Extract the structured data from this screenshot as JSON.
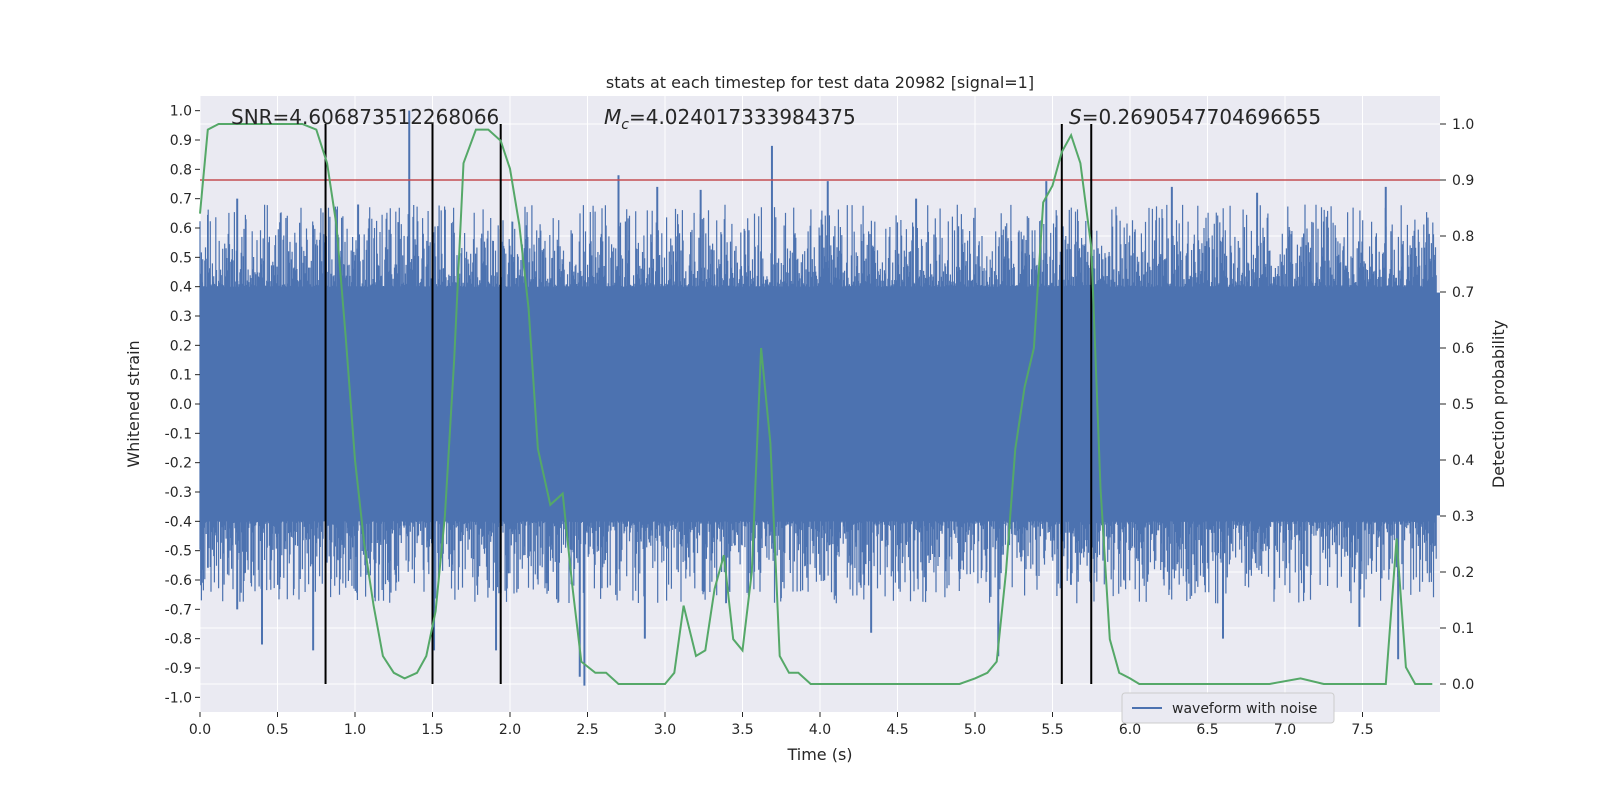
{
  "chart_data": {
    "type": "line",
    "title": "stats at each timestep for test data 20982 [signal=1]",
    "xlabel": "Time (s)",
    "ylabel_left": "Whitened strain",
    "ylabel_right": "Detection probability",
    "xlim": [
      0.0,
      8.0
    ],
    "ylim_left": [
      -1.05,
      1.05
    ],
    "ylim_right": [
      -0.05,
      1.05
    ],
    "x_ticks": [
      0.0,
      0.5,
      1.0,
      1.5,
      2.0,
      2.5,
      3.0,
      3.5,
      4.0,
      4.5,
      5.0,
      5.5,
      6.0,
      6.5,
      7.0,
      7.5
    ],
    "x_tick_labels": [
      "0.0",
      "0.5",
      "1.0",
      "1.5",
      "2.0",
      "2.5",
      "3.0",
      "3.5",
      "4.0",
      "4.5",
      "5.0",
      "5.5",
      "6.0",
      "6.5",
      "7.0",
      "7.5"
    ],
    "y_left_ticks": [
      1.0,
      0.9,
      0.8,
      0.7,
      0.6,
      0.5,
      0.4,
      0.3,
      0.2,
      0.1,
      0.0,
      -0.1,
      -0.2,
      -0.3,
      -0.4,
      -0.5,
      -0.6,
      -0.7,
      -0.8,
      -0.9,
      -1.0
    ],
    "y_left_tick_labels": [
      "1.0",
      "0.9",
      "0.8",
      "0.7",
      "0.6",
      "0.5",
      "0.4",
      "0.3",
      "0.2",
      "0.1",
      "0.0",
      "-0.1",
      "-0.2",
      "-0.3",
      "-0.4",
      "-0.5",
      "-0.6",
      "-0.7",
      "-0.8",
      "-0.9",
      "-1.0"
    ],
    "y_right_ticks": [
      1.0,
      0.9,
      0.8,
      0.7,
      0.6,
      0.5,
      0.4,
      0.3,
      0.2,
      0.1,
      0.0
    ],
    "y_right_tick_labels": [
      "1.0",
      "0.9",
      "0.8",
      "0.7",
      "0.6",
      "0.5",
      "0.4",
      "0.3",
      "0.2",
      "0.1",
      "0.0"
    ],
    "annotations": {
      "snr": "SNR=4.606873512268066",
      "mc": "=4.024017333984375",
      "mc_symbol": "M",
      "mc_sub": "c",
      "s": "=0.2690547704696655",
      "s_symbol": "S"
    },
    "legend": {
      "label": "waveform with noise",
      "position": "lower-right"
    },
    "threshold_line": {
      "y_right": 0.9,
      "color": "#c44e52"
    },
    "vertical_lines_x": [
      0.81,
      1.5,
      1.94,
      5.56,
      5.75
    ],
    "vertical_lines_range_right": [
      0.0,
      1.0
    ],
    "waveform": {
      "name": "waveform with noise",
      "color": "#4c72b0",
      "core_amplitude": 0.4,
      "spikes": [
        {
          "x": 1.35,
          "y": 1.0
        },
        {
          "x": 1.28,
          "y": 0.62
        },
        {
          "x": 3.69,
          "y": 0.88
        },
        {
          "x": 2.48,
          "y": -0.96
        },
        {
          "x": 2.45,
          "y": -0.93
        },
        {
          "x": 5.15,
          "y": -0.86
        },
        {
          "x": 0.4,
          "y": -0.82
        },
        {
          "x": 0.73,
          "y": -0.84
        },
        {
          "x": 1.91,
          "y": -0.84
        },
        {
          "x": 1.51,
          "y": -0.84
        },
        {
          "x": 7.73,
          "y": -0.87
        },
        {
          "x": 6.6,
          "y": -0.8
        },
        {
          "x": 7.48,
          "y": -0.76
        },
        {
          "x": 2.87,
          "y": -0.8
        },
        {
          "x": 0.24,
          "y": -0.7
        },
        {
          "x": 4.33,
          "y": -0.78
        },
        {
          "x": 7.65,
          "y": 0.74
        },
        {
          "x": 2.7,
          "y": 0.78
        },
        {
          "x": 2.95,
          "y": 0.74
        },
        {
          "x": 3.23,
          "y": 0.73
        },
        {
          "x": 4.05,
          "y": 0.76
        },
        {
          "x": 5.46,
          "y": 0.76
        },
        {
          "x": 6.27,
          "y": 0.74
        },
        {
          "x": 6.82,
          "y": 0.72
        },
        {
          "x": 0.24,
          "y": 0.7
        },
        {
          "x": 1.02,
          "y": 0.68
        },
        {
          "x": 4.62,
          "y": 0.7
        }
      ]
    },
    "detection_probability": {
      "name": "detection probability",
      "color": "#55a868",
      "x": [
        0.0,
        0.05,
        0.12,
        0.25,
        0.4,
        0.55,
        0.66,
        0.75,
        0.82,
        0.88,
        0.94,
        1.0,
        1.06,
        1.12,
        1.18,
        1.25,
        1.32,
        1.4,
        1.46,
        1.52,
        1.58,
        1.64,
        1.7,
        1.78,
        1.86,
        1.94,
        2.0,
        2.06,
        2.12,
        2.18,
        2.26,
        2.34,
        2.4,
        2.46,
        2.55,
        2.62,
        2.7,
        2.8,
        2.9,
        3.0,
        3.06,
        3.12,
        3.2,
        3.26,
        3.32,
        3.38,
        3.44,
        3.5,
        3.56,
        3.62,
        3.68,
        3.74,
        3.8,
        3.86,
        3.94,
        4.0,
        4.1,
        4.3,
        4.5,
        4.7,
        4.9,
        5.0,
        5.08,
        5.14,
        5.2,
        5.26,
        5.32,
        5.38,
        5.44,
        5.5,
        5.56,
        5.62,
        5.68,
        5.75,
        5.81,
        5.87,
        5.93,
        6.0,
        6.06,
        6.15,
        6.3,
        6.5,
        6.7,
        6.9,
        7.1,
        7.25,
        7.35,
        7.45,
        7.55,
        7.65,
        7.72,
        7.78,
        7.84,
        7.9,
        7.95
      ],
      "y": [
        0.84,
        0.99,
        1.0,
        1.0,
        1.0,
        1.0,
        1.0,
        0.99,
        0.93,
        0.82,
        0.62,
        0.4,
        0.25,
        0.14,
        0.05,
        0.02,
        0.01,
        0.02,
        0.05,
        0.13,
        0.3,
        0.58,
        0.93,
        0.99,
        0.99,
        0.97,
        0.92,
        0.82,
        0.67,
        0.42,
        0.32,
        0.34,
        0.18,
        0.04,
        0.02,
        0.02,
        0.0,
        0.0,
        0.0,
        0.0,
        0.02,
        0.14,
        0.05,
        0.06,
        0.17,
        0.23,
        0.08,
        0.06,
        0.2,
        0.6,
        0.43,
        0.05,
        0.02,
        0.02,
        0.0,
        0.0,
        0.0,
        0.0,
        0.0,
        0.0,
        0.0,
        0.01,
        0.02,
        0.04,
        0.2,
        0.42,
        0.53,
        0.6,
        0.86,
        0.89,
        0.95,
        0.98,
        0.93,
        0.78,
        0.35,
        0.08,
        0.02,
        0.01,
        0.0,
        0.0,
        0.0,
        0.0,
        0.0,
        0.0,
        0.01,
        0.0,
        0.0,
        0.0,
        0.0,
        0.0,
        0.26,
        0.03,
        0.0,
        0.0,
        0.0
      ]
    }
  }
}
